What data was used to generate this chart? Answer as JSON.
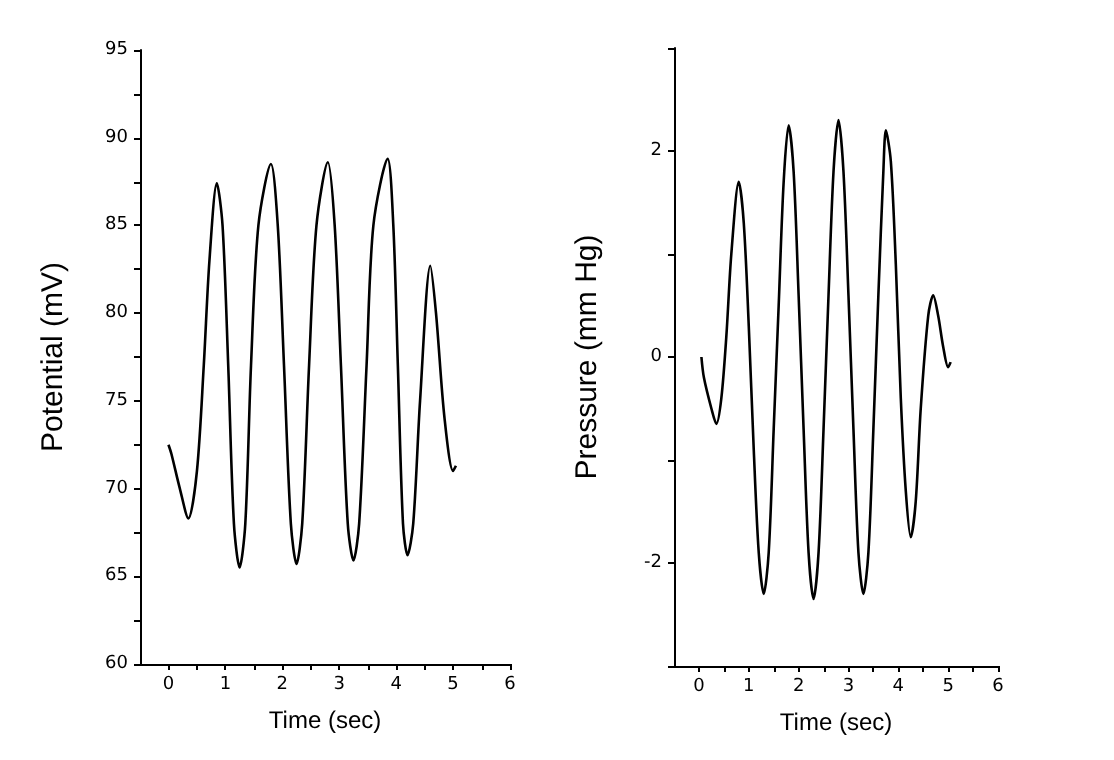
{
  "chart_data": [
    {
      "type": "line",
      "xlabel": "Time (sec)",
      "ylabel": "Potential (mV)",
      "color": "#000000",
      "marker": "none",
      "line_style": "solid",
      "xlim": [
        -0.5,
        6
      ],
      "ylim": [
        60,
        95
      ],
      "xticks": [
        0,
        {
          "value": 0.5,
          "label": null
        },
        1,
        {
          "value": 1.5,
          "label": null
        },
        2,
        {
          "value": 2.5,
          "label": null
        },
        3,
        {
          "value": 3.5,
          "label": null
        },
        4,
        {
          "value": 4.5,
          "label": null
        },
        5,
        {
          "value": 5.5,
          "label": null
        },
        6
      ],
      "yticks": [
        60,
        {
          "value": 62.5,
          "label": null
        },
        65,
        {
          "value": 67.5,
          "label": null
        },
        70,
        {
          "value": 72.5,
          "label": null
        },
        75,
        {
          "value": 77.5,
          "label": null
        },
        80,
        {
          "value": 82.5,
          "label": null
        },
        85,
        {
          "value": 87.5,
          "label": null
        },
        90,
        {
          "value": 92.5,
          "label": null
        },
        95
      ],
      "x": [
        0,
        0.05,
        0.2,
        0.35,
        0.5,
        0.62,
        0.72,
        0.85,
        0.95,
        1.05,
        1.15,
        1.25,
        1.35,
        1.45,
        1.58,
        1.8,
        1.92,
        2.03,
        2.15,
        2.25,
        2.35,
        2.47,
        2.6,
        2.8,
        2.92,
        3.03,
        3.15,
        3.25,
        3.35,
        3.48,
        3.6,
        3.85,
        3.95,
        4.03,
        4.12,
        4.2,
        4.3,
        4.42,
        4.6,
        4.7,
        4.85,
        5.0,
        5.05
      ],
      "values": [
        72.5,
        72,
        70,
        68.3,
        71,
        77,
        83,
        87.4,
        85,
        77,
        68,
        65.5,
        68,
        77,
        85,
        88.5,
        85,
        77,
        68,
        65.7,
        68,
        77,
        85,
        88.6,
        85,
        77,
        68,
        65.9,
        68,
        77,
        85,
        88.8,
        85,
        77,
        68,
        66.2,
        68,
        75,
        82.7,
        80,
        74,
        71,
        71.3
      ]
    },
    {
      "type": "line",
      "xlabel": "Time (sec)",
      "ylabel": "Pressure (mm Hg)",
      "color": "#000000",
      "marker": "none",
      "line_style": "solid",
      "xlim": [
        -0.5,
        6
      ],
      "ylim": [
        -3,
        3
      ],
      "xticks": [
        0,
        {
          "value": 0.5,
          "label": null
        },
        1,
        {
          "value": 1.5,
          "label": null
        },
        2,
        {
          "value": 2.5,
          "label": null
        },
        3,
        {
          "value": 3.5,
          "label": null
        },
        4,
        {
          "value": 4.5,
          "label": null
        },
        5,
        {
          "value": 5.5,
          "label": null
        },
        6
      ],
      "yticks": [
        {
          "value": -3,
          "label": null
        },
        -2,
        {
          "value": -1,
          "label": null
        },
        0,
        {
          "value": 1,
          "label": null
        },
        2,
        {
          "value": 3,
          "label": null
        }
      ],
      "x": [
        0.05,
        0.1,
        0.25,
        0.35,
        0.45,
        0.55,
        0.65,
        0.8,
        0.9,
        1.0,
        1.1,
        1.2,
        1.3,
        1.4,
        1.5,
        1.6,
        1.7,
        1.8,
        1.9,
        2.0,
        2.1,
        2.2,
        2.3,
        2.4,
        2.5,
        2.6,
        2.7,
        2.8,
        2.9,
        3.0,
        3.1,
        3.2,
        3.3,
        3.4,
        3.5,
        3.6,
        3.7,
        3.75,
        3.85,
        3.95,
        4.05,
        4.15,
        4.25,
        4.35,
        4.45,
        4.6,
        4.7,
        4.8,
        4.9,
        5.0,
        5.05
      ],
      "values": [
        0,
        -0.2,
        -0.5,
        -0.65,
        -0.4,
        0.2,
        1,
        1.7,
        1.3,
        0.3,
        -0.9,
        -1.9,
        -2.3,
        -1.9,
        -0.7,
        0.5,
        1.7,
        2.25,
        1.8,
        0.6,
        -0.7,
        -1.9,
        -2.35,
        -1.9,
        -0.7,
        0.6,
        1.8,
        2.3,
        1.8,
        0.6,
        -0.7,
        -1.9,
        -2.3,
        -1.9,
        -0.7,
        0.6,
        1.8,
        2.2,
        1.9,
        0.9,
        -0.4,
        -1.3,
        -1.75,
        -1.4,
        -0.5,
        0.4,
        0.6,
        0.4,
        0.1,
        -0.1,
        -0.05
      ]
    }
  ]
}
